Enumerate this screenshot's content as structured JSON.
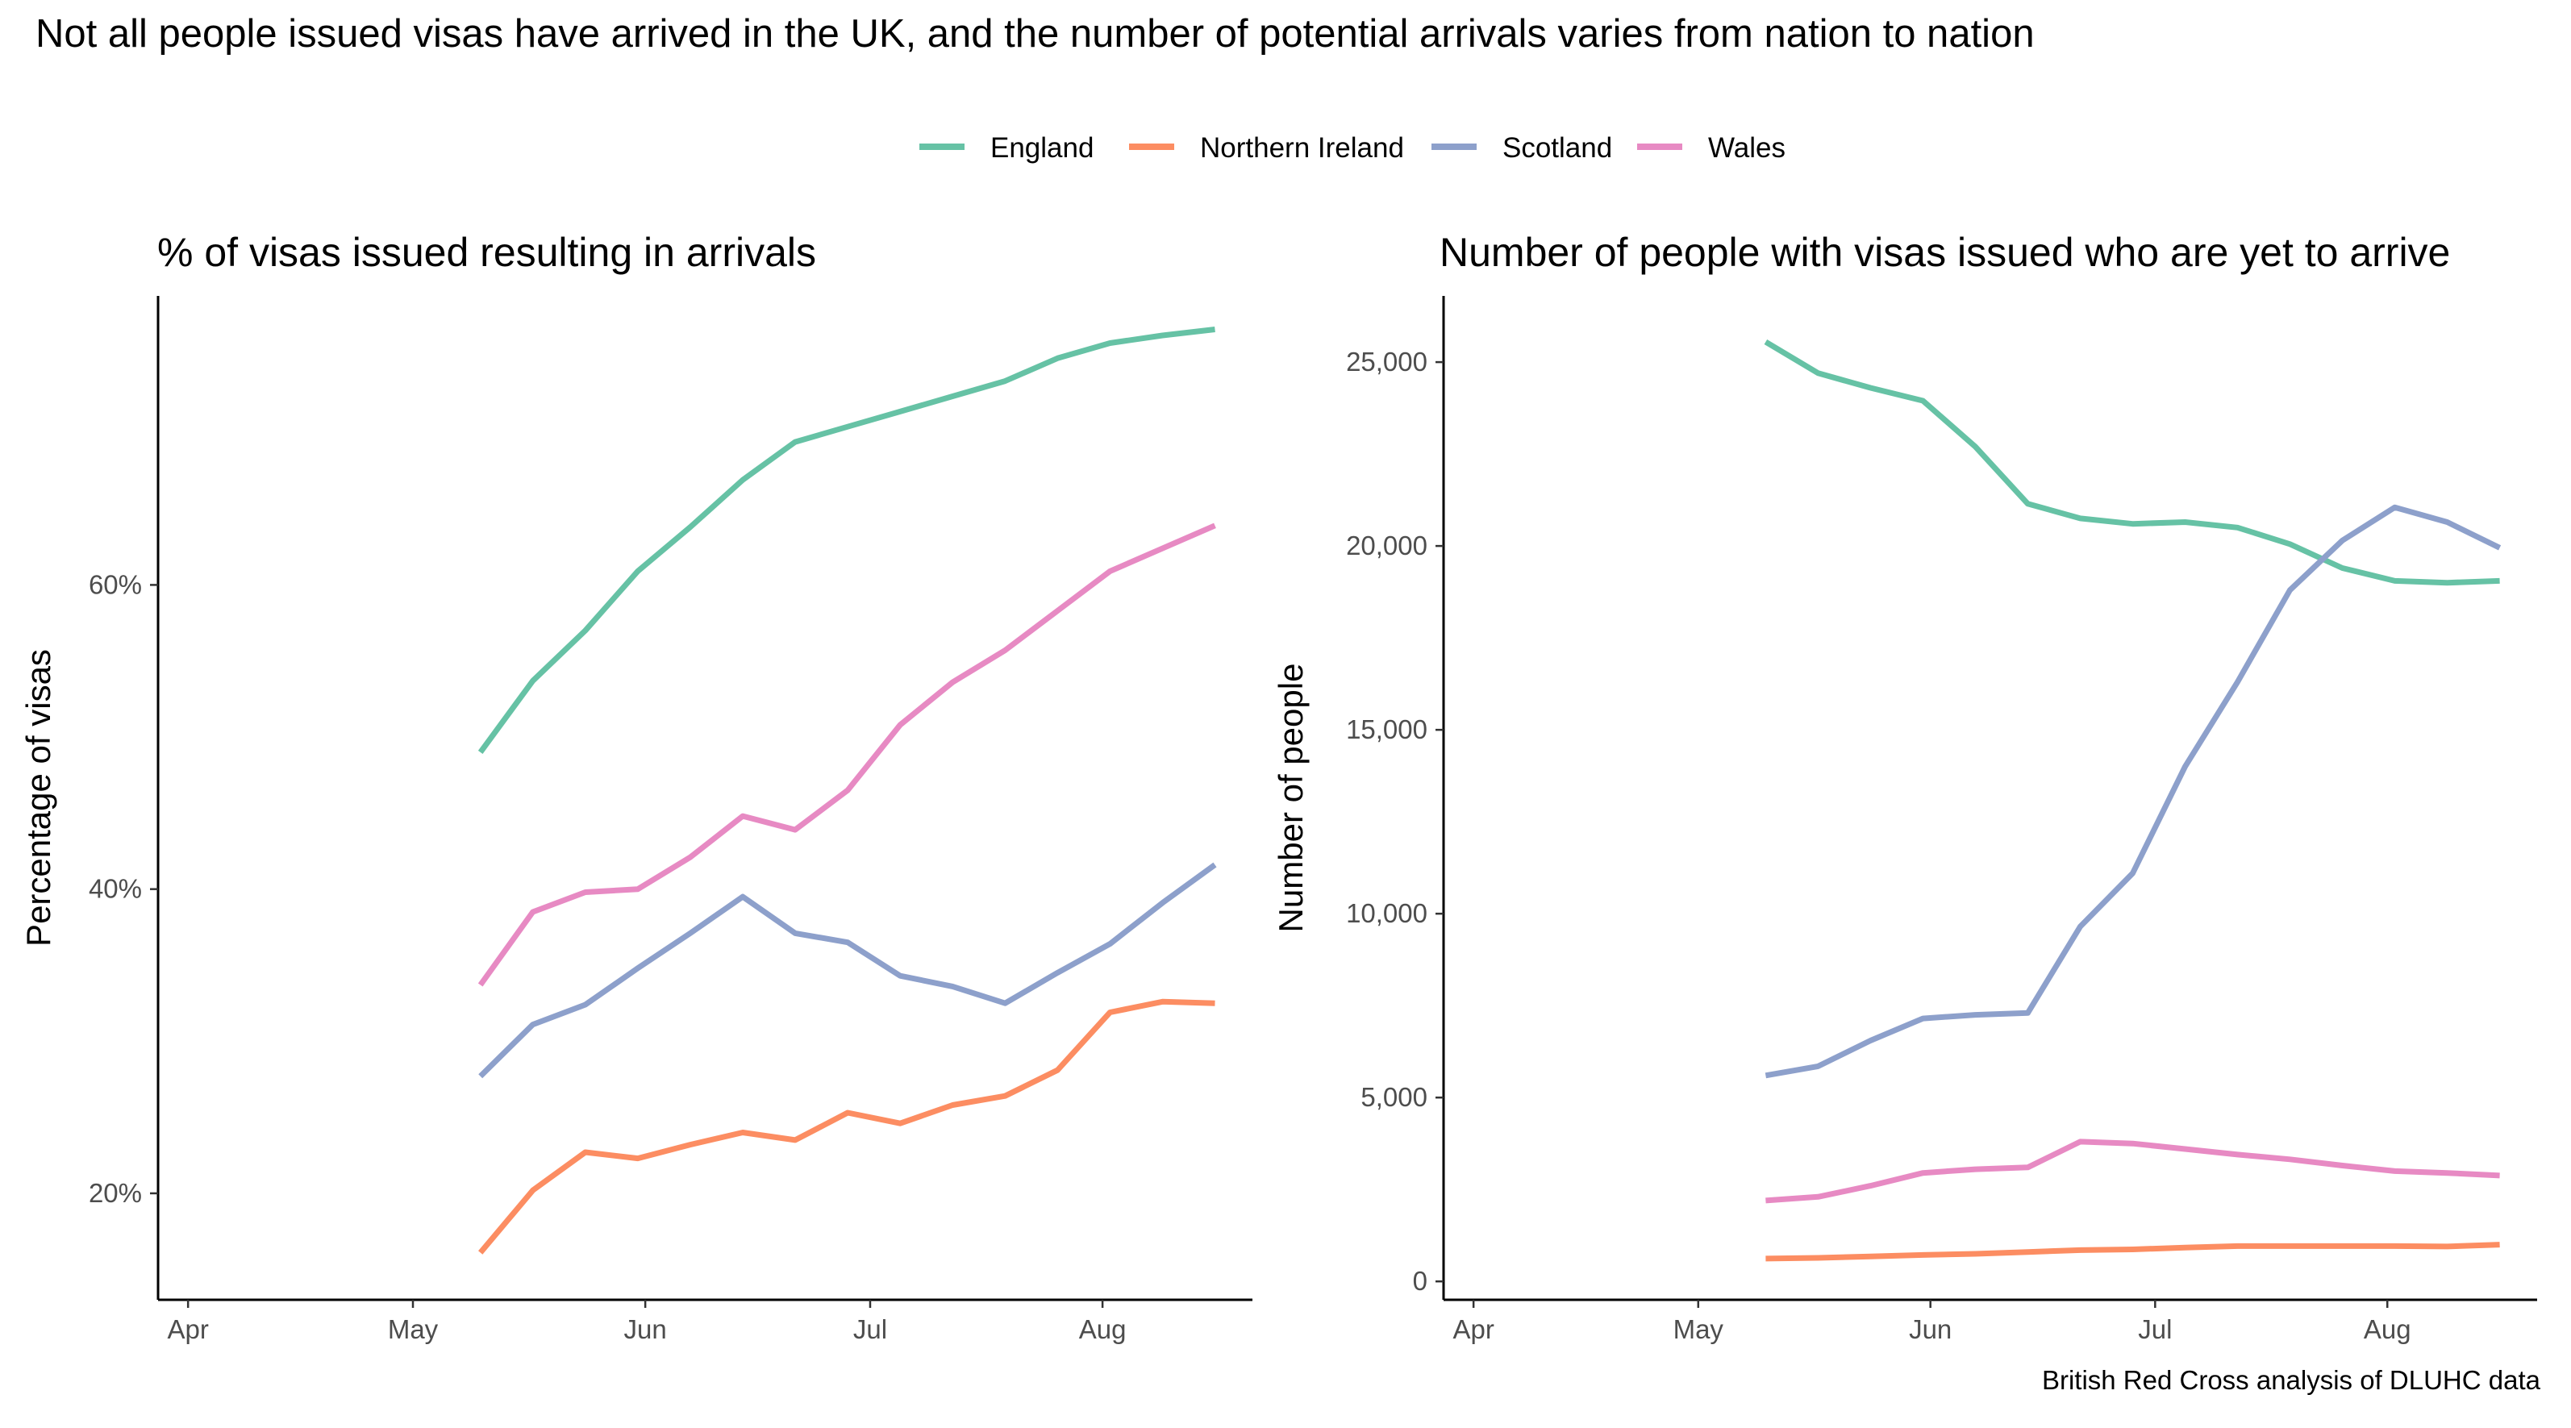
{
  "title": "Not all people issued visas have arrived in the UK, and the number of potential arrivals varies from nation to nation",
  "caption": "British Red Cross analysis of DLUHC data",
  "legend": [
    {
      "name": "England",
      "color": "#66c2a5"
    },
    {
      "name": "Northern Ireland",
      "color": "#fc8d62"
    },
    {
      "name": "Scotland",
      "color": "#8da0cb"
    },
    {
      "name": "Wales",
      "color": "#e78ac3"
    }
  ],
  "chart_data": [
    {
      "type": "line",
      "title": "% of visas issued resulting in arrivals",
      "xlabel": "",
      "ylabel": "Percentage of visas",
      "x_ticks": [
        "Apr",
        "May",
        "Jun",
        "Jul",
        "Aug"
      ],
      "y_ticks": [
        "20%",
        "40%",
        "60%"
      ],
      "y_tick_values": [
        20,
        40,
        60
      ],
      "ylim": [
        13,
        79
      ],
      "grid": false,
      "legend_position": "top",
      "x": [
        "2022-05-10",
        "2022-05-17",
        "2022-05-24",
        "2022-05-31",
        "2022-06-07",
        "2022-06-14",
        "2022-06-21",
        "2022-06-28",
        "2022-07-05",
        "2022-07-12",
        "2022-07-19",
        "2022-07-26",
        "2022-08-02",
        "2022-08-09",
        "2022-08-16"
      ],
      "series": [
        {
          "name": "England",
          "values": [
            49.0,
            53.7,
            57.0,
            60.9,
            63.8,
            66.9,
            69.4,
            70.4,
            71.4,
            72.4,
            73.4,
            74.9,
            75.9,
            76.4,
            76.8
          ]
        },
        {
          "name": "Northern Ireland",
          "values": [
            16.1,
            20.2,
            22.7,
            22.3,
            23.2,
            24.0,
            23.5,
            25.3,
            24.6,
            25.8,
            26.4,
            28.1,
            31.9,
            32.6,
            32.5
          ]
        },
        {
          "name": "Scotland",
          "values": [
            27.7,
            31.1,
            32.4,
            34.8,
            37.1,
            39.5,
            37.1,
            36.5,
            34.3,
            33.6,
            32.5,
            34.5,
            36.4,
            39.1,
            41.6
          ]
        },
        {
          "name": "Wales",
          "values": [
            33.7,
            38.5,
            39.8,
            40.0,
            42.1,
            44.8,
            43.9,
            46.5,
            50.8,
            53.6,
            55.7,
            58.3,
            60.9,
            62.4,
            63.9
          ]
        }
      ]
    },
    {
      "type": "line",
      "title": "Number of people with visas issued who are yet to arrive",
      "xlabel": "",
      "ylabel": "Number of people",
      "x_ticks": [
        "Apr",
        "May",
        "Jun",
        "Jul",
        "Aug"
      ],
      "y_ticks": [
        "0",
        "5,000",
        "10,000",
        "15,000",
        "20,000",
        "25,000"
      ],
      "y_tick_values": [
        0,
        5000,
        10000,
        15000,
        20000,
        25000
      ],
      "ylim": [
        -500,
        26800
      ],
      "grid": false,
      "x": [
        "2022-05-10",
        "2022-05-17",
        "2022-05-24",
        "2022-05-31",
        "2022-06-07",
        "2022-06-14",
        "2022-06-21",
        "2022-06-28",
        "2022-07-05",
        "2022-07-12",
        "2022-07-19",
        "2022-07-26",
        "2022-08-02",
        "2022-08-09",
        "2022-08-16"
      ],
      "series": [
        {
          "name": "England",
          "values": [
            25550,
            24700,
            24300,
            23950,
            22700,
            21150,
            20750,
            20600,
            20650,
            20500,
            20050,
            19400,
            19050,
            19000,
            19050
          ]
        },
        {
          "name": "Northern Ireland",
          "values": [
            620,
            640,
            680,
            720,
            750,
            800,
            850,
            870,
            920,
            960,
            960,
            960,
            960,
            950,
            1000
          ]
        },
        {
          "name": "Scotland",
          "values": [
            5600,
            5850,
            6550,
            7150,
            7250,
            7300,
            9650,
            11100,
            14000,
            16300,
            18800,
            20150,
            21050,
            20650,
            19950
          ]
        },
        {
          "name": "Wales",
          "values": [
            2200,
            2300,
            2600,
            2950,
            3050,
            3100,
            3800,
            3750,
            3600,
            3450,
            3320,
            3150,
            3000,
            2950,
            2880
          ]
        }
      ]
    }
  ]
}
